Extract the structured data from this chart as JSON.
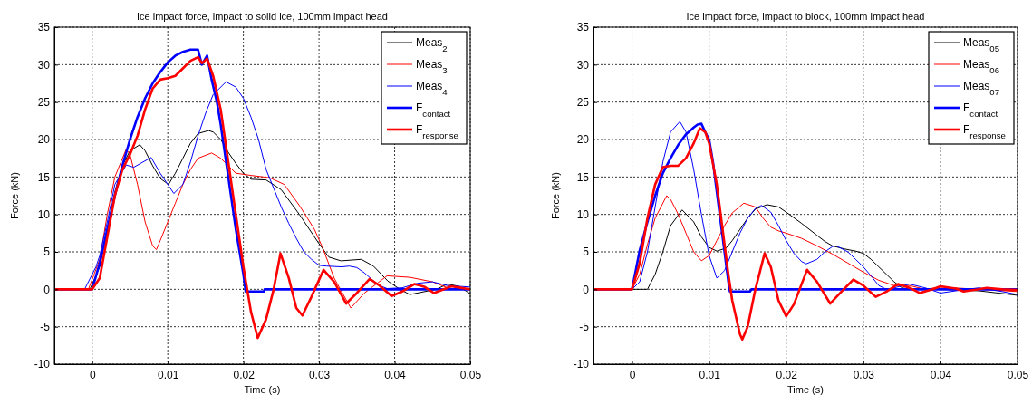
{
  "chart_data": [
    {
      "type": "line",
      "title": "Ice impact force, impact to solid ice, 100mm impact head",
      "xlabel": "Time (s)",
      "ylabel": "Force (kN)",
      "xlim": [
        -0.005,
        0.05
      ],
      "xticks": [
        0,
        0.01,
        0.02,
        0.03,
        0.04,
        0.05
      ],
      "ylim": [
        -10,
        35
      ],
      "yticks": [
        -10,
        -5,
        0,
        5,
        10,
        15,
        20,
        25,
        30,
        35
      ],
      "grid": true,
      "legend": "top right",
      "line_style": "solid",
      "marker": "none",
      "series": [
        {
          "name": "Meas$_{2}$",
          "color": "#000000",
          "x": [
            -0.005,
            -0.0003,
            0.001,
            0.002,
            0.003,
            0.004,
            0.005,
            0.0063,
            0.007,
            0.008,
            0.009,
            0.0101,
            0.011,
            0.012,
            0.013,
            0.014,
            0.0154,
            0.016,
            0.017,
            0.018,
            0.019,
            0.02,
            0.021,
            0.023,
            0.025,
            0.0274,
            0.03,
            0.0313,
            0.0329,
            0.0356,
            0.0372,
            0.0391,
            0.0407,
            0.042,
            0.0455,
            0.047,
            0.0485,
            0.05
          ],
          "values": [
            0,
            0,
            3,
            8,
            13,
            16.5,
            18.5,
            19.3,
            18.5,
            16.5,
            14.8,
            14,
            15.5,
            17.5,
            19.5,
            20.8,
            21.2,
            21,
            20,
            18.3,
            16.8,
            15.5,
            14.7,
            14.6,
            13.3,
            10,
            6.1,
            4.3,
            3.8,
            4,
            3.1,
            1.1,
            0,
            -0.7,
            0,
            0.7,
            0.4,
            -0.6
          ]
        },
        {
          "name": "Meas$_{3}$",
          "color": "#ff0000",
          "x": [
            -0.005,
            -0.0005,
            0.001,
            0.002,
            0.003,
            0.0045,
            0.005,
            0.006,
            0.007,
            0.008,
            0.0085,
            0.009,
            0.01,
            0.011,
            0.012,
            0.013,
            0.014,
            0.0158,
            0.017,
            0.018,
            0.019,
            0.0211,
            0.0235,
            0.0254,
            0.0274,
            0.0294,
            0.0305,
            0.032,
            0.0342,
            0.036,
            0.039,
            0.042,
            0.045,
            0.0475,
            0.05
          ],
          "values": [
            0,
            0,
            4,
            10,
            15,
            18.7,
            18,
            14,
            9,
            5.8,
            5.3,
            6.5,
            9,
            11.5,
            14,
            16,
            17.5,
            18.2,
            17.5,
            16.5,
            15.5,
            15.2,
            14.9,
            14,
            11.2,
            8,
            5.5,
            1.5,
            -2.5,
            -0.5,
            1.8,
            1.6,
            1,
            0,
            0
          ]
        },
        {
          "name": "Meas$_{4}$",
          "color": "#0000ff",
          "x": [
            -0.005,
            -0.001,
            0.0005,
            0.001,
            0.002,
            0.003,
            0.0045,
            0.0055,
            0.0078,
            0.009,
            0.0108,
            0.012,
            0.013,
            0.014,
            0.015,
            0.016,
            0.0177,
            0.019,
            0.02,
            0.021,
            0.022,
            0.023,
            0.024,
            0.025,
            0.026,
            0.027,
            0.028,
            0.029,
            0.03,
            0.031,
            0.033,
            0.034,
            0.035,
            0.036,
            0.037,
            0.038,
            0.039,
            0.041,
            0.043,
            0.045,
            0.047,
            0.05
          ],
          "values": [
            0,
            0,
            3,
            4.5,
            9,
            14,
            16.6,
            16.3,
            17.6,
            15.5,
            12.8,
            14,
            17,
            20.5,
            23.5,
            26,
            27.7,
            27,
            25.5,
            23,
            20,
            16,
            13.5,
            11,
            8.8,
            6.8,
            5,
            4,
            3.2,
            3.1,
            3,
            3.1,
            2.9,
            2.2,
            1.3,
            0.5,
            0.1,
            0.2,
            0.8,
            1,
            0.5,
            0.3
          ]
        },
        {
          "name": "F$_{contact}$",
          "color": "#0000ff",
          "x": [
            -0.005,
            0,
            0.001,
            0.002,
            0.003,
            0.004,
            0.005,
            0.006,
            0.007,
            0.008,
            0.009,
            0.01,
            0.011,
            0.012,
            0.013,
            0.014,
            0.0145,
            0.0152,
            0.0158,
            0.0165,
            0.017,
            0.018,
            0.019,
            0.02,
            0.0203,
            0.0227,
            0.0228,
            0.05
          ],
          "values": [
            0,
            0,
            3.5,
            8,
            12.5,
            16.5,
            20,
            23,
            25.5,
            27.5,
            29,
            30.3,
            31.2,
            31.7,
            32,
            32,
            30,
            31.2,
            28,
            25,
            22,
            15,
            8,
            2,
            -0.3,
            -0.3,
            0,
            0
          ]
        },
        {
          "name": "F$_{response}$",
          "color": "#ff0000",
          "x": [
            -0.005,
            0,
            0.001,
            0.002,
            0.003,
            0.004,
            0.005,
            0.006,
            0.007,
            0.008,
            0.009,
            0.01,
            0.011,
            0.012,
            0.013,
            0.014,
            0.0145,
            0.0152,
            0.016,
            0.017,
            0.018,
            0.019,
            0.02,
            0.021,
            0.0219,
            0.023,
            0.024,
            0.0249,
            0.026,
            0.027,
            0.0278,
            0.029,
            0.0306,
            0.032,
            0.0336,
            0.035,
            0.0367,
            0.038,
            0.0396,
            0.041,
            0.0426,
            0.044,
            0.0452,
            0.0475,
            0.05
          ],
          "values": [
            0,
            0,
            1.5,
            7,
            12.5,
            16,
            18,
            20.5,
            24,
            26.8,
            28,
            28.2,
            28.5,
            29.5,
            30.5,
            31,
            30.2,
            30.8,
            28.5,
            24,
            17,
            10,
            3,
            -3,
            -6.5,
            -4,
            0,
            4.8,
            1.5,
            -2.5,
            -3.5,
            -1,
            2.6,
            1,
            -1.9,
            -0.5,
            1.4,
            0.5,
            -0.9,
            -0.3,
            0.7,
            0.3,
            -0.5,
            0.4,
            0
          ]
        }
      ]
    },
    {
      "type": "line",
      "title": "Ice impact force, impact to block, 100mm impact head",
      "xlabel": "Time (s)",
      "ylabel": "Force (kN)",
      "xlim": [
        -0.005,
        0.05
      ],
      "xticks": [
        0,
        0.01,
        0.02,
        0.03,
        0.04,
        0.05
      ],
      "ylim": [
        -10,
        35
      ],
      "yticks": [
        -10,
        -5,
        0,
        5,
        10,
        15,
        20,
        25,
        30,
        35
      ],
      "grid": true,
      "legend": "top right",
      "line_style": "solid",
      "marker": "none",
      "series": [
        {
          "name": "Meas$_{05}$",
          "color": "#000000",
          "x": [
            -0.005,
            0.002,
            0.003,
            0.004,
            0.005,
            0.0065,
            0.008,
            0.009,
            0.01,
            0.011,
            0.0122,
            0.013,
            0.014,
            0.015,
            0.016,
            0.0175,
            0.019,
            0.02,
            0.022,
            0.024,
            0.025,
            0.026,
            0.0275,
            0.029,
            0.03,
            0.031,
            0.032,
            0.033,
            0.034,
            0.035,
            0.036,
            0.04,
            0.045,
            0.05
          ],
          "values": [
            0,
            0,
            2,
            5,
            8.5,
            10.6,
            9,
            7,
            5.6,
            5.1,
            5.5,
            6.5,
            8,
            9.5,
            10.7,
            11.3,
            11,
            10.3,
            8.8,
            7.2,
            6.4,
            5.8,
            5.4,
            5.1,
            4.8,
            4,
            3,
            2,
            1,
            0.2,
            0,
            0,
            -0.2,
            -0.8
          ]
        },
        {
          "name": "Meas$_{06}$",
          "color": "#ff0000",
          "x": [
            -0.005,
            0,
            0.001,
            0.002,
            0.003,
            0.0045,
            0.005,
            0.006,
            0.007,
            0.008,
            0.009,
            0.01,
            0.011,
            0.012,
            0.013,
            0.0145,
            0.016,
            0.017,
            0.018,
            0.019,
            0.02,
            0.022,
            0.024,
            0.026,
            0.028,
            0.03,
            0.032,
            0.034,
            0.036,
            0.038,
            0.04,
            0.045,
            0.05
          ],
          "values": [
            0,
            0,
            2,
            6,
            9.5,
            12.5,
            12,
            10,
            7.5,
            5,
            3.8,
            4.5,
            6.5,
            8.5,
            10.2,
            11.5,
            11,
            9.5,
            8.3,
            7.8,
            7.5,
            6.8,
            5.8,
            4.7,
            3.5,
            2.3,
            1.2,
            0.5,
            0.5,
            0,
            0.3,
            0,
            -0.3
          ]
        },
        {
          "name": "Meas$_{07}$",
          "color": "#0000ff",
          "x": [
            -0.005,
            0,
            0.001,
            0.002,
            0.003,
            0.004,
            0.005,
            0.0062,
            0.007,
            0.008,
            0.009,
            0.01,
            0.011,
            0.012,
            0.013,
            0.014,
            0.015,
            0.016,
            0.0168,
            0.018,
            0.019,
            0.02,
            0.021,
            0.022,
            0.0226,
            0.024,
            0.025,
            0.026,
            0.0265,
            0.028,
            0.029,
            0.03,
            0.031,
            0.032,
            0.033,
            0.034,
            0.036,
            0.038,
            0.04,
            0.042,
            0.045,
            0.048,
            0.05
          ],
          "values": [
            0,
            0,
            1,
            5,
            11,
            17,
            21,
            22.4,
            21,
            16,
            10,
            4.5,
            1.5,
            2.5,
            5,
            7.5,
            9.5,
            10.8,
            11.2,
            10.3,
            8.5,
            6.5,
            4.8,
            3.7,
            3.4,
            4,
            5,
            5.7,
            5.8,
            5,
            4,
            3,
            1.8,
            0.5,
            0,
            0.2,
            0.7,
            0.2,
            -0.5,
            -0.2,
            0.2,
            -0.3,
            -0.7
          ]
        },
        {
          "name": "F$_{contact}$",
          "color": "#0000ff",
          "x": [
            -0.005,
            0,
            0.001,
            0.002,
            0.003,
            0.004,
            0.005,
            0.006,
            0.007,
            0.008,
            0.0085,
            0.009,
            0.0095,
            0.01,
            0.0105,
            0.011,
            0.0115,
            0.012,
            0.0125,
            0.0127,
            0.0153,
            0.0155,
            0.05
          ],
          "values": [
            0,
            0,
            5.2,
            9,
            12.5,
            15.5,
            17.5,
            19.3,
            20.7,
            21.6,
            22,
            22.1,
            21,
            20,
            17,
            13,
            9,
            5,
            1,
            -0.3,
            -0.3,
            0,
            0
          ]
        },
        {
          "name": "F$_{response}$",
          "color": "#ff0000",
          "x": [
            -0.005,
            0,
            0.001,
            0.002,
            0.003,
            0.004,
            0.005,
            0.006,
            0.007,
            0.008,
            0.0088,
            0.0095,
            0.01,
            0.011,
            0.012,
            0.0125,
            0.013,
            0.014,
            0.0143,
            0.015,
            0.016,
            0.0172,
            0.018,
            0.019,
            0.02,
            0.021,
            0.0227,
            0.024,
            0.0257,
            0.027,
            0.0287,
            0.03,
            0.0316,
            0.033,
            0.0345,
            0.036,
            0.0373,
            0.039,
            0.04,
            0.042,
            0.043,
            0.045,
            0.046,
            0.048,
            0.05
          ],
          "values": [
            0,
            0,
            3.5,
            9.5,
            14,
            16.3,
            16.5,
            16.5,
            17.5,
            19.5,
            21.5,
            21,
            19.5,
            14,
            6,
            2,
            -1.5,
            -6,
            -6.7,
            -5,
            0,
            4.8,
            3,
            -1.5,
            -3.6,
            -2,
            2.6,
            1,
            -1.9,
            -0.5,
            1.3,
            0.5,
            -1,
            -0.3,
            0.7,
            0.2,
            -0.5,
            0,
            0.4,
            0.1,
            -0.3,
            0,
            0.2,
            0,
            -0.1
          ]
        }
      ]
    }
  ]
}
